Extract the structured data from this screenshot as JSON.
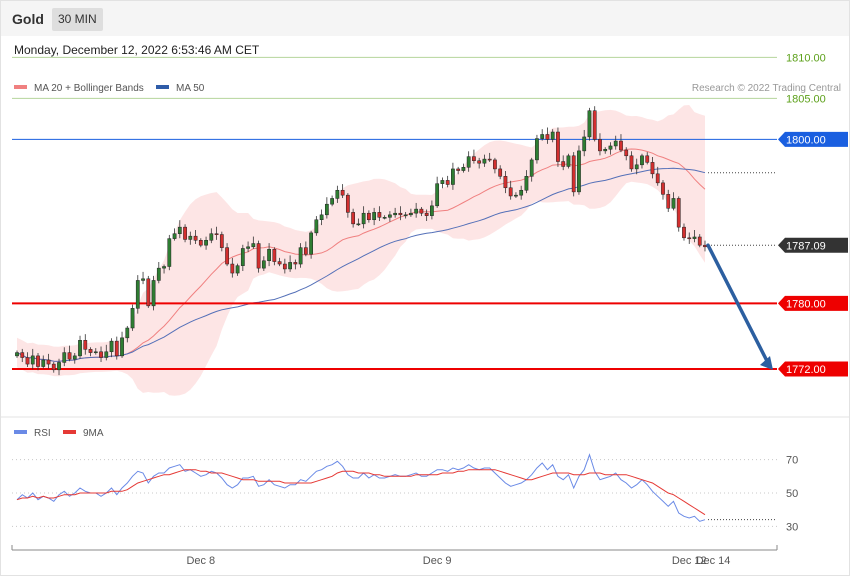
{
  "header": {
    "symbol": "Gold",
    "timeframe": "30 MIN",
    "timestamp": "Monday, December 12, 2022 6:53:46 AM CET"
  },
  "legend": {
    "ma20": "MA 20 + Bollinger Bands",
    "ma50": "MA 50",
    "credit": "Research © 2022 Trading Central"
  },
  "rsi_legend": {
    "rsi": "RSI",
    "ma": "9MA"
  },
  "colors": {
    "bull": "#2e7d32",
    "bear": "#d32f2f",
    "band": "#fde0e0",
    "ma20": "#f08080",
    "ma50": "#5470b8",
    "support": "#ee0000",
    "resistance": "#1a5fe0",
    "target": "#7cb342",
    "arrow": "#2c5fa0",
    "price": "#333333",
    "rsi": "#6a8ae6",
    "rsi_ma": "#e53935"
  },
  "chart_data": [
    {
      "type": "candlestick",
      "title": "Gold",
      "ylim": [
        1767,
        1812
      ],
      "x_ticks": [
        "Dec 8",
        "Dec 9",
        "Dec 12",
        "Dec 14"
      ],
      "levels": [
        {
          "value": 1810.0,
          "label": "1810.00",
          "kind": "target"
        },
        {
          "value": 1805.0,
          "label": "1805.00",
          "kind": "target"
        },
        {
          "value": 1800.0,
          "label": "1800.00",
          "kind": "resistance"
        },
        {
          "value": 1787.09,
          "label": "1787.09",
          "kind": "price"
        },
        {
          "value": 1780.0,
          "label": "1780.00",
          "kind": "support"
        },
        {
          "value": 1772.0,
          "label": "1772.00",
          "kind": "support"
        }
      ],
      "arrow": {
        "from": 1787.1,
        "to": 1772.0
      },
      "close": [
        1774.0,
        1773.4,
        1772.6,
        1773.6,
        1772.3,
        1773.1,
        1772.6,
        1771.9,
        1772.8,
        1774.0,
        1773.2,
        1773.6,
        1775.5,
        1774.4,
        1774.0,
        1774.1,
        1773.4,
        1774.1,
        1775.4,
        1773.6,
        1775.8,
        1777.0,
        1779.4,
        1782.8,
        1783.0,
        1779.7,
        1782.8,
        1784.3,
        1784.5,
        1787.9,
        1788.5,
        1789.3,
        1787.8,
        1788.2,
        1787.7,
        1787.1,
        1787.7,
        1788.5,
        1788.4,
        1786.8,
        1784.8,
        1783.7,
        1784.6,
        1786.7,
        1786.9,
        1787.3,
        1784.3,
        1785.2,
        1786.6,
        1785.1,
        1784.8,
        1784.2,
        1785.0,
        1784.8,
        1786.8,
        1786.0,
        1788.6,
        1790.2,
        1790.8,
        1792.1,
        1792.8,
        1793.8,
        1793.2,
        1791.1,
        1789.7,
        1789.7,
        1791.0,
        1790.2,
        1791.1,
        1790.5,
        1790.5,
        1790.8,
        1791.0,
        1790.8,
        1790.8,
        1791.0,
        1791.5,
        1791.0,
        1790.7,
        1791.9,
        1794.6,
        1795.0,
        1794.5,
        1796.4,
        1796.2,
        1796.6,
        1797.9,
        1797.4,
        1797.1,
        1797.6,
        1797.5,
        1796.4,
        1795.5,
        1794.1,
        1793.1,
        1793.2,
        1793.8,
        1795.5,
        1797.5,
        1800.1,
        1800.6,
        1800.0,
        1800.9,
        1797.3,
        1796.7,
        1798.0,
        1793.6,
        1798.6,
        1800.3,
        1803.5,
        1800.0,
        1798.6,
        1798.8,
        1799.2,
        1799.8,
        1798.7,
        1798.0,
        1796.4,
        1796.9,
        1798.0,
        1797.2,
        1795.8,
        1794.7,
        1793.3,
        1791.6,
        1792.8,
        1789.3,
        1788.0,
        1787.9,
        1788.1,
        1787.1,
        1786.9
      ]
    },
    {
      "type": "line",
      "title": "RSI",
      "ylim": [
        20,
        80
      ],
      "y_ticks": [
        30,
        50,
        70
      ],
      "series": [
        {
          "name": "RSI",
          "values": [
            46,
            49,
            47,
            50,
            46,
            48,
            47,
            45,
            49,
            51,
            48,
            50,
            53,
            51,
            50,
            50,
            48,
            50,
            53,
            49,
            53,
            56,
            60,
            63,
            62,
            56,
            60,
            62,
            62,
            65,
            66,
            67,
            63,
            64,
            62,
            60,
            61,
            63,
            62,
            59,
            55,
            53,
            55,
            59,
            59,
            60,
            54,
            55,
            58,
            55,
            54,
            53,
            55,
            55,
            58,
            57,
            60,
            63,
            64,
            66,
            67,
            69,
            66,
            61,
            59,
            59,
            62,
            59,
            61,
            59,
            59,
            60,
            61,
            60,
            60,
            61,
            62,
            60,
            60,
            62,
            64,
            64,
            63,
            65,
            64,
            65,
            67,
            65,
            64,
            65,
            65,
            62,
            59,
            56,
            54,
            55,
            56,
            58,
            61,
            65,
            68,
            64,
            67,
            60,
            58,
            61,
            53,
            60,
            64,
            73,
            63,
            58,
            59,
            60,
            62,
            58,
            56,
            53,
            55,
            58,
            55,
            51,
            48,
            45,
            42,
            45,
            38,
            36,
            35,
            36,
            33,
            34
          ]
        },
        {
          "name": "9MA",
          "values": [
            46,
            47,
            47,
            48,
            47,
            48,
            47,
            47,
            48,
            49,
            49,
            49,
            50,
            50,
            50,
            50,
            50,
            50,
            51,
            51,
            51,
            52,
            54,
            56,
            57,
            58,
            59,
            60,
            61,
            61,
            62,
            63,
            64,
            64,
            64,
            63,
            63,
            62,
            62,
            62,
            61,
            60,
            59,
            58,
            58,
            58,
            57,
            57,
            57,
            57,
            57,
            56,
            56,
            56,
            56,
            56,
            56,
            57,
            58,
            59,
            60,
            62,
            63,
            63,
            63,
            62,
            62,
            62,
            61,
            61,
            60,
            60,
            60,
            60,
            60,
            60,
            61,
            61,
            61,
            61,
            61,
            62,
            62,
            62,
            63,
            63,
            64,
            64,
            64,
            64,
            64,
            64,
            63,
            62,
            61,
            60,
            59,
            58,
            58,
            59,
            60,
            61,
            62,
            62,
            62,
            62,
            61,
            61,
            61,
            62,
            62,
            62,
            61,
            61,
            61,
            61,
            61,
            60,
            59,
            58,
            57,
            56,
            54,
            52,
            50,
            49,
            47,
            45,
            43,
            41,
            39,
            37
          ]
        }
      ]
    }
  ]
}
